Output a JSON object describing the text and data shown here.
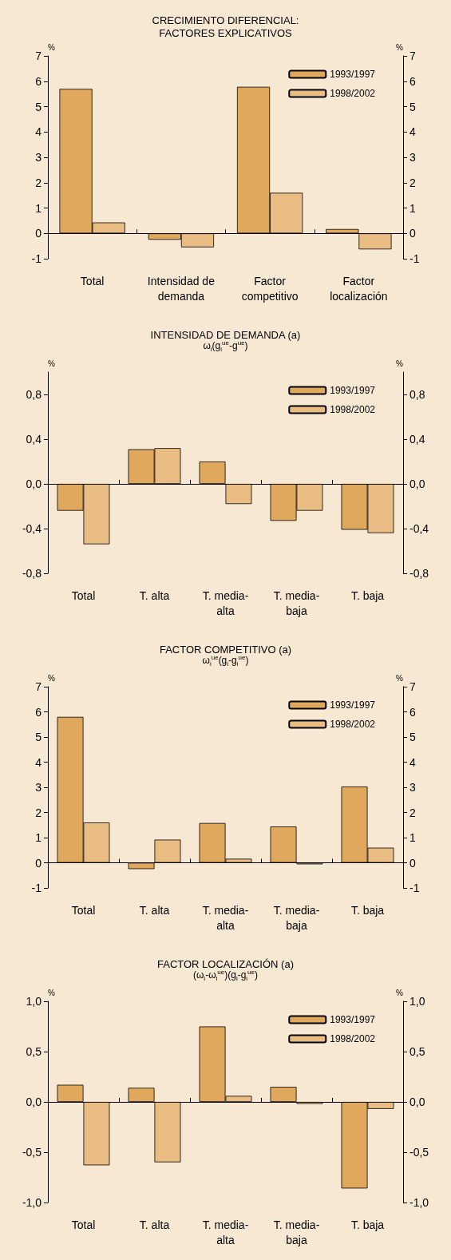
{
  "chart_data": [
    {
      "type": "bar",
      "title": "CRECIMIENTO DIFERENCIAL:\nFACTORES EXPLICATIVOS",
      "ylabel": "%",
      "y2label": "%",
      "categories": [
        "Total",
        "Intensidad de\ndemanda",
        "Factor\ncompetitivo",
        "Factor\nlocalización"
      ],
      "series": [
        {
          "name": "1993/1997",
          "color": "#e0a85c",
          "values": [
            5.7,
            -0.25,
            5.78,
            0.17
          ]
        },
        {
          "name": "1998/2002",
          "color": "#e9bc84",
          "values": [
            0.43,
            -0.55,
            1.6,
            -0.63
          ]
        }
      ],
      "ylim": [
        -1,
        7
      ],
      "yticks": [
        -1,
        0,
        1,
        2,
        3,
        4,
        5,
        6,
        7
      ],
      "y2lim": [
        -1,
        7
      ],
      "y2ticks": [
        -1,
        0,
        1,
        2,
        3,
        4,
        5,
        6,
        7
      ],
      "legend": "top right"
    },
    {
      "type": "bar",
      "title": "INTENSIDAD DE DEMANDA (a)",
      "subtitle": "ω$_{i}$(g$_{i}$$^{ue}$-g$^{ue}$)",
      "ylabel": "%",
      "y2label": "%",
      "categories": [
        "Total",
        "T. alta",
        "T. media-\nalta",
        "T. media-\nbaja",
        "T. baja"
      ],
      "series": [
        {
          "name": "1993/1997",
          "color": "#e0a85c",
          "values": [
            -0.24,
            0.31,
            0.2,
            -0.33,
            -0.41
          ]
        },
        {
          "name": "1998/2002",
          "color": "#e9bc84",
          "values": [
            -0.54,
            0.32,
            -0.18,
            -0.24,
            -0.44
          ]
        }
      ],
      "ylim": [
        -0.8,
        1
      ],
      "yticks": [
        {
          "value": -0.8,
          "label": "-0,8"
        },
        {
          "value": -0.4,
          "label": "-0,4"
        },
        {
          "value": 0,
          "label": "0,0"
        },
        {
          "value": 0.4,
          "label": "0,4"
        },
        {
          "value": 0.8,
          "label": "0,8"
        }
      ],
      "y2lim": [
        -0.8,
        1
      ],
      "y2ticks": [
        {
          "value": -0.8,
          "label": "-0,8"
        },
        {
          "value": -0.4,
          "label": "-0,4"
        },
        {
          "value": 0,
          "label": "0,0"
        },
        {
          "value": 0.4,
          "label": "0,4"
        },
        {
          "value": 0.8,
          "label": "0,8"
        }
      ],
      "legend": "top right"
    },
    {
      "type": "bar",
      "title": "FACTOR COMPETITIVO (a)",
      "subtitle": "ω$_{i}$$^{ue}$(g$_{i}$-g$_{i}$$^{ue}$)",
      "ylabel": "%",
      "y2label": "%",
      "categories": [
        "Total",
        "T. alta",
        "T. media-\nalta",
        "T. media-\nbaja",
        "T. baja"
      ],
      "series": [
        {
          "name": "1993/1997",
          "color": "#e0a85c",
          "values": [
            5.8,
            -0.25,
            1.58,
            1.44,
            3.03
          ]
        },
        {
          "name": "1998/2002",
          "color": "#e9bc84",
          "values": [
            1.6,
            0.92,
            0.16,
            -0.06,
            0.6
          ]
        }
      ],
      "ylim": [
        -1,
        7
      ],
      "yticks": [
        -1,
        0,
        1,
        2,
        3,
        4,
        5,
        6,
        7
      ],
      "y2lim": [
        -1,
        7
      ],
      "y2ticks": [
        -1,
        0,
        1,
        2,
        3,
        4,
        5,
        6,
        7
      ],
      "legend": "top right"
    },
    {
      "type": "bar",
      "title": "FACTOR LOCALIZACIÓN (a)",
      "subtitle": "(ω$_{i}$-ω$_{i}$$^{ue}$)(g$_{i}$-g$_{i}$$^{ue}$)",
      "ylabel": "%",
      "y2label": "%",
      "categories": [
        "Total",
        "T. alta",
        "T. media-\nalta",
        "T. media-\nbaja",
        "T. baja"
      ],
      "series": [
        {
          "name": "1993/1997",
          "color": "#e0a85c",
          "values": [
            0.17,
            0.14,
            0.75,
            0.15,
            -0.86
          ]
        },
        {
          "name": "1998/2002",
          "color": "#e9bc84",
          "values": [
            -0.63,
            -0.6,
            0.06,
            -0.02,
            -0.07
          ]
        }
      ],
      "ylim": [
        -1,
        1
      ],
      "yticks": [
        {
          "value": -1,
          "label": "-1,0"
        },
        {
          "value": -0.5,
          "label": "-0,5"
        },
        {
          "value": 0,
          "label": "0,0"
        },
        {
          "value": 0.5,
          "label": "0,5"
        },
        {
          "value": 1,
          "label": "1,0"
        }
      ],
      "y2lim": [
        -1,
        1
      ],
      "y2ticks": [
        {
          "value": -1,
          "label": "-1,0"
        },
        {
          "value": -0.5,
          "label": "-0,5"
        },
        {
          "value": 0,
          "label": "0,0"
        },
        {
          "value": 0.5,
          "label": "0,5"
        },
        {
          "value": 1,
          "label": "1,0"
        }
      ],
      "legend": "top right"
    }
  ]
}
